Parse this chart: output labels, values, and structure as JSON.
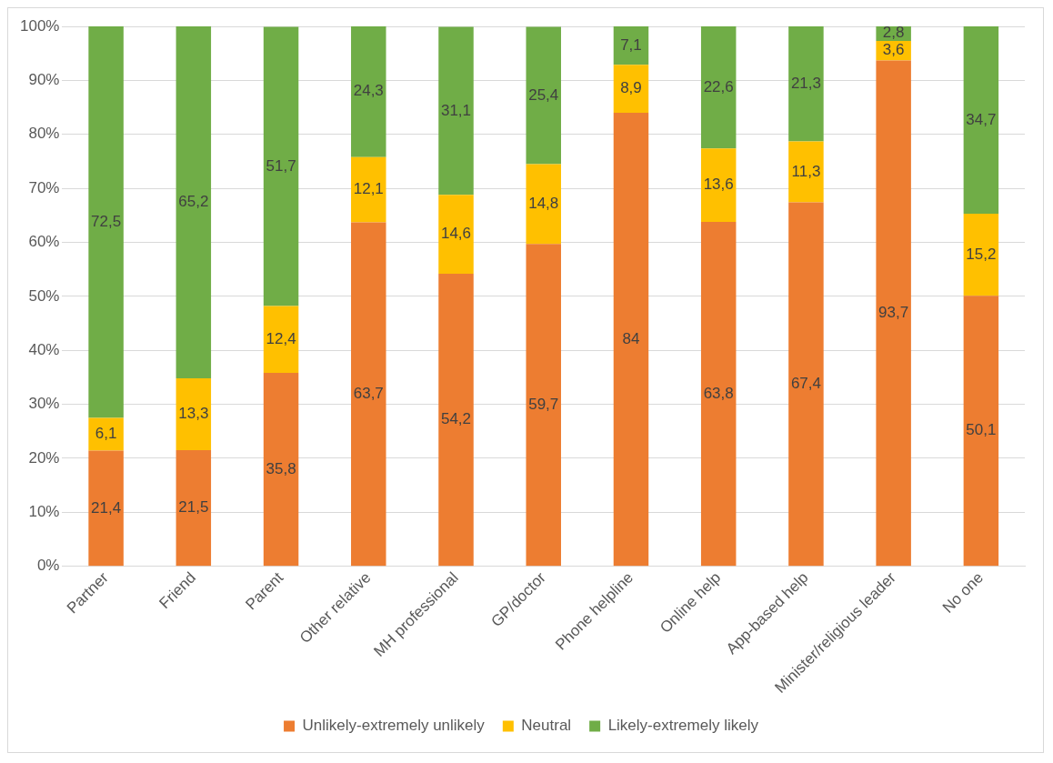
{
  "chart_data": {
    "type": "bar",
    "stacked": true,
    "categories": [
      "Partner",
      "Friend",
      "Parent",
      "Other relative",
      "MH professional",
      "GP/doctor",
      "Phone helpline",
      "Online help",
      "App-based help",
      "Minister/religious leader",
      "No one"
    ],
    "series": [
      {
        "name": "Unlikely-extremely unlikely",
        "color": "#ed7d31",
        "values": [
          21.4,
          21.5,
          35.8,
          63.7,
          54.2,
          59.7,
          84,
          63.8,
          67.4,
          93.7,
          50.1
        ],
        "value_labels": [
          "21,4",
          "21,5",
          "35,8",
          "63,7",
          "54,2",
          "59,7",
          "84",
          "63,8",
          "67,4",
          "93,7",
          "50,1"
        ]
      },
      {
        "name": "Neutral",
        "color": "#ffc000",
        "values": [
          6.1,
          13.3,
          12.4,
          12.1,
          14.6,
          14.8,
          8.9,
          13.6,
          11.3,
          3.6,
          15.2
        ],
        "value_labels": [
          "6,1",
          "13,3",
          "12,4",
          "12,1",
          "14,6",
          "14,8",
          "8,9",
          "13,6",
          "11,3",
          "3,6",
          "15,2"
        ]
      },
      {
        "name": "Likely-extremely likely",
        "color": "#70ad47",
        "values": [
          72.5,
          65.2,
          51.7,
          24.3,
          31.1,
          25.4,
          7.1,
          22.6,
          21.3,
          2.8,
          34.7
        ],
        "value_labels": [
          "72,5",
          "65,2",
          "51,7",
          "24,3",
          "31,1",
          "25,4",
          "7,1",
          "22,6",
          "21,3",
          "2,8",
          "34,7"
        ]
      }
    ],
    "ylim": [
      0,
      100
    ],
    "yticks": [
      {
        "value": 0,
        "label": "0%"
      },
      {
        "value": 10,
        "label": "10%"
      },
      {
        "value": 20,
        "label": "20%"
      },
      {
        "value": 30,
        "label": "30%"
      },
      {
        "value": 40,
        "label": "40%"
      },
      {
        "value": 50,
        "label": "50%"
      },
      {
        "value": 60,
        "label": "60%"
      },
      {
        "value": 70,
        "label": "70%"
      },
      {
        "value": 80,
        "label": "80%"
      },
      {
        "value": 90,
        "label": "90%"
      },
      {
        "value": 100,
        "label": "100%"
      }
    ],
    "grid": "y",
    "legend": "bottom"
  }
}
